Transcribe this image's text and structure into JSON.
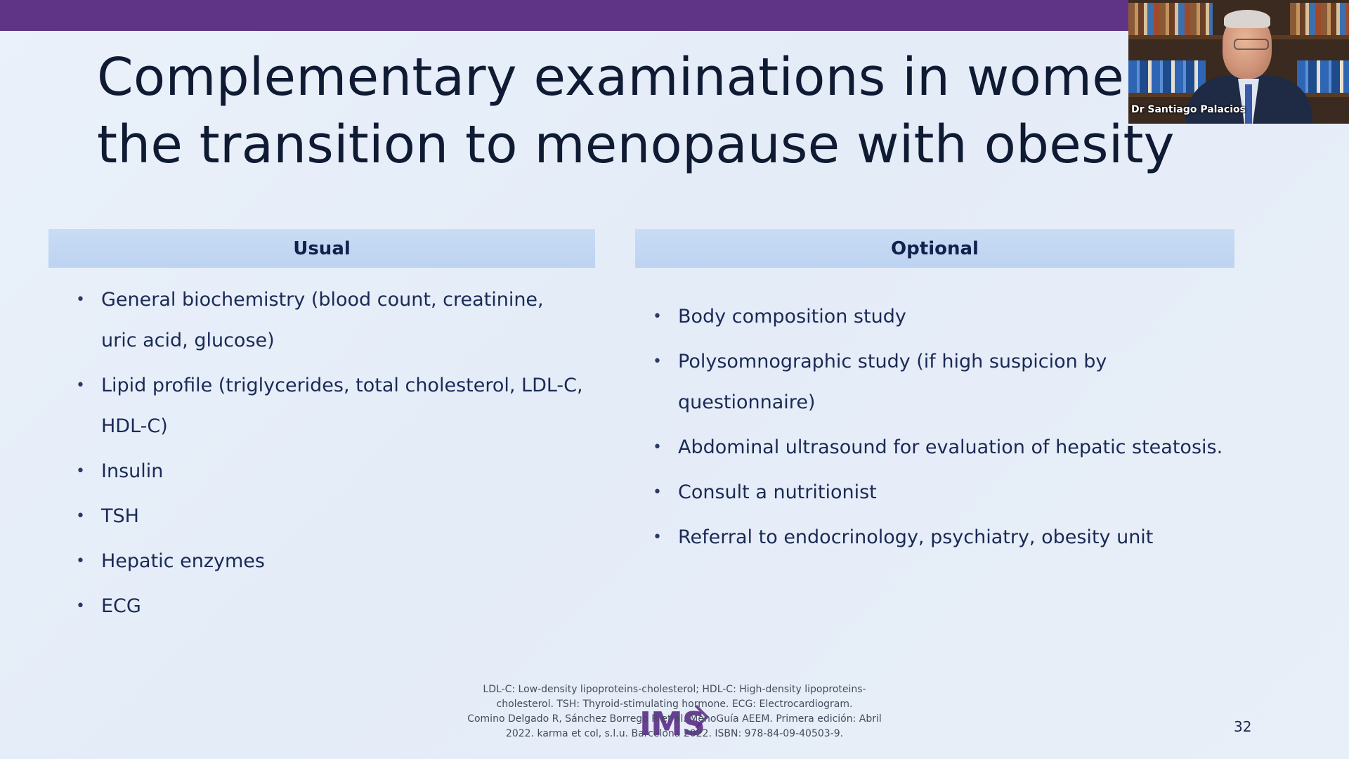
{
  "slide": {
    "title": "Complementary examinations in women the transition to menopause with obesity",
    "page_number": "32"
  },
  "columns": {
    "usual": {
      "header": "Usual",
      "items": [
        "General biochemistry (blood count, creatinine, uric acid, glucose)",
        "Lipid profile (triglycerides, total cholesterol, LDL-C, HDL-C)",
        "Insulin",
        "TSH",
        "Hepatic enzymes",
        "ECG"
      ]
    },
    "optional": {
      "header": "Optional",
      "items": [
        "Body composition study",
        "Polysomnographic study (if high suspicion by questionnaire)",
        "Abdominal ultrasound for evaluation of hepatic steatosis.",
        "Consult a nutritionist",
        "Referral to endocrinology, psychiatry, obesity unit"
      ]
    }
  },
  "footnote": {
    "lines": [
      "LDL-C: Low-density lipoproteins-cholesterol; HDL-C: High-density lipoproteins-",
      "cholesterol. TSH: Thyroid-stimulating hormone. ECG: Electrocardiogram.",
      "Comino Delgado R, Sánchez Borrego R et al. MenoGuía AEEM. Primera edición: Abril",
      "2022. karma et col, s.l.u. Barcelona 2022. ISBN: 978-84-09-40503-9."
    ]
  },
  "logo": {
    "text": "IMS"
  },
  "webcam": {
    "participant_name": "Dr Santiago Palacios"
  },
  "colors": {
    "top_bar": "#5f3487",
    "header_fill": "#c3d8f3",
    "text": "#1a2a55"
  },
  "bullet_glyph": "•"
}
